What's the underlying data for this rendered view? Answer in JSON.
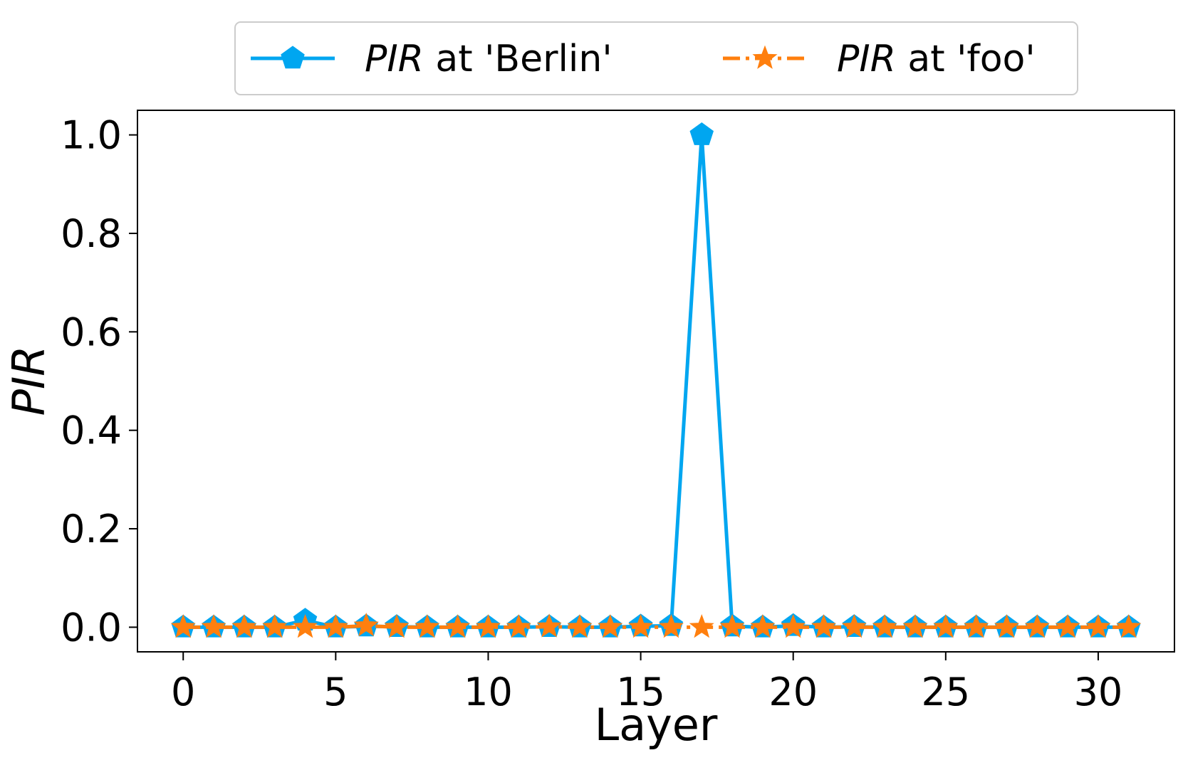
{
  "chart_data": {
    "type": "line",
    "xlabel": "Layer",
    "ylabel": "PIR",
    "xlim": [
      -1.5,
      32.5
    ],
    "ylim": [
      -0.05,
      1.05
    ],
    "xticks": [
      0,
      5,
      10,
      15,
      20,
      25,
      30
    ],
    "xtick_labels": [
      "0",
      "5",
      "10",
      "15",
      "20",
      "25",
      "30"
    ],
    "yticks": [
      0.0,
      0.2,
      0.4,
      0.6,
      0.8,
      1.0
    ],
    "ytick_labels": [
      "0.0",
      "0.2",
      "0.4",
      "0.6",
      "0.8",
      "1.0"
    ],
    "grid": false,
    "legend_position": "top-center",
    "x": [
      0,
      1,
      2,
      3,
      4,
      5,
      6,
      7,
      8,
      9,
      10,
      11,
      12,
      13,
      14,
      15,
      16,
      17,
      18,
      19,
      20,
      21,
      22,
      23,
      24,
      25,
      26,
      27,
      28,
      29,
      30,
      31
    ],
    "series": [
      {
        "name": "PIR at 'Berlin'",
        "legend_italic": "PIR",
        "legend_rest": " at 'Berlin'",
        "color": "#00a6f0",
        "marker": "pentagon",
        "linestyle": "solid",
        "values": [
          0,
          0,
          0,
          0,
          0.014,
          0,
          0.002,
          0.001,
          0,
          0,
          0,
          0,
          0.001,
          0,
          0,
          0.002,
          0.003,
          1.0,
          0.002,
          0,
          0.003,
          0,
          0.001,
          0,
          0,
          0,
          0,
          0,
          0,
          0,
          0,
          0
        ]
      },
      {
        "name": "PIR at 'foo'",
        "legend_italic": "PIR",
        "legend_rest": " at 'foo'",
        "color": "#ff7f0e",
        "marker": "star",
        "linestyle": "dashdot",
        "values": [
          0,
          0,
          0,
          0,
          0,
          0,
          0.003,
          0,
          0,
          0,
          0,
          0,
          0.001,
          0,
          0,
          0,
          0,
          0,
          0,
          0,
          0,
          0,
          0,
          0,
          0,
          0,
          0,
          0,
          0,
          0,
          0,
          0
        ]
      }
    ]
  }
}
